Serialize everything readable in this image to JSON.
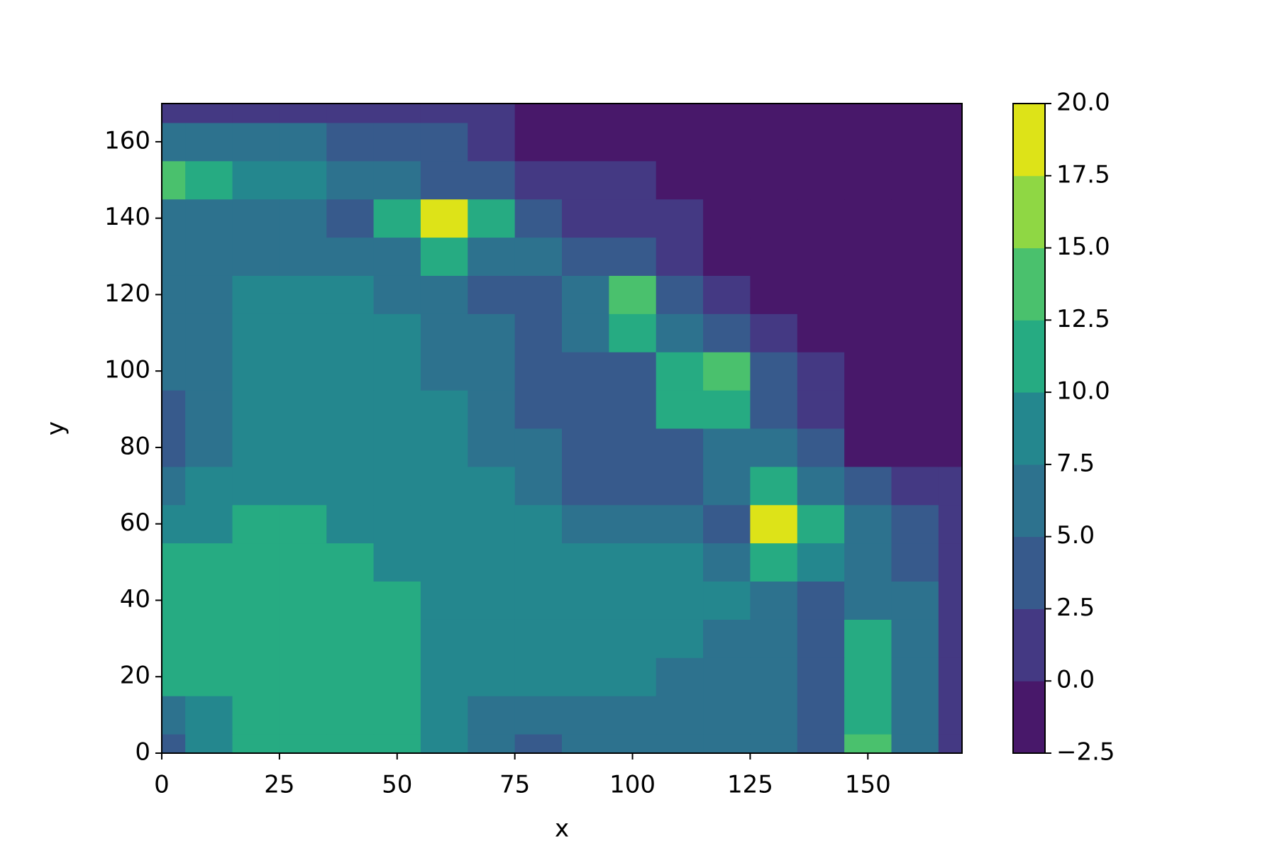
{
  "chart_data": {
    "type": "contourf",
    "xlabel": "x",
    "ylabel": "y",
    "xlim": [
      0,
      170
    ],
    "ylim": [
      0,
      170
    ],
    "xticks": [
      0,
      25,
      50,
      75,
      100,
      125,
      150
    ],
    "yticks": [
      0,
      20,
      40,
      60,
      80,
      100,
      120,
      140,
      160
    ],
    "grid": false,
    "x": [
      0,
      10,
      20,
      30,
      40,
      50,
      60,
      70,
      80,
      90,
      100,
      110,
      120,
      130,
      140,
      150,
      160,
      170
    ],
    "y": [
      0,
      10,
      20,
      30,
      40,
      50,
      60,
      70,
      80,
      90,
      100,
      110,
      120,
      130,
      140,
      150,
      160,
      170
    ],
    "z": [
      [
        4,
        9,
        11,
        11,
        11,
        11,
        9,
        6,
        4,
        6,
        6,
        6,
        6,
        6,
        4,
        14,
        6,
        1
      ],
      [
        6,
        9,
        11,
        11,
        11,
        11,
        9,
        6,
        6,
        6,
        6,
        6,
        6,
        6,
        4,
        11,
        6,
        1
      ],
      [
        11,
        11,
        11,
        11,
        11,
        11,
        9,
        9,
        9,
        9,
        9,
        6,
        6,
        6,
        4,
        11,
        6,
        1
      ],
      [
        11,
        11,
        11,
        11,
        11,
        11,
        9,
        9,
        9,
        9,
        9,
        9,
        6,
        6,
        4,
        11,
        6,
        1
      ],
      [
        11,
        11,
        11,
        11,
        11,
        11,
        9,
        9,
        9,
        9,
        9,
        9,
        9,
        6,
        4,
        6,
        6,
        1
      ],
      [
        11,
        11,
        11,
        11,
        11,
        9,
        9,
        9,
        9,
        9,
        9,
        9,
        6,
        11,
        9,
        6,
        4,
        1
      ],
      [
        9,
        9,
        11,
        11,
        9,
        9,
        9,
        9,
        9,
        6,
        6,
        6,
        4,
        19,
        11,
        6,
        4,
        1
      ],
      [
        6,
        9,
        9,
        9,
        9,
        9,
        9,
        9,
        6,
        4,
        4,
        4,
        6,
        11,
        6,
        4,
        1,
        1
      ],
      [
        4,
        6,
        9,
        9,
        9,
        9,
        9,
        6,
        6,
        4,
        4,
        4,
        6,
        6,
        4,
        -1,
        -1,
        -1
      ],
      [
        4,
        6,
        9,
        9,
        9,
        9,
        9,
        6,
        4,
        4,
        4,
        11,
        11,
        4,
        1,
        -1,
        -1,
        -1
      ],
      [
        6,
        6,
        9,
        9,
        9,
        9,
        6,
        6,
        4,
        4,
        4,
        11,
        14,
        4,
        1,
        -1,
        -1,
        -1
      ],
      [
        6,
        6,
        9,
        9,
        9,
        9,
        6,
        6,
        4,
        6,
        11,
        6,
        4,
        1,
        -1,
        -1,
        -1,
        -1
      ],
      [
        6,
        6,
        9,
        9,
        9,
        6,
        6,
        4,
        4,
        6,
        14,
        4,
        1,
        -1,
        -1,
        -1,
        -1,
        -1
      ],
      [
        6,
        6,
        6,
        6,
        6,
        6,
        11,
        6,
        6,
        4,
        4,
        1,
        -1,
        -1,
        -1,
        -1,
        -1,
        -1
      ],
      [
        6,
        6,
        6,
        6,
        4,
        11,
        19,
        11,
        4,
        1,
        1,
        1,
        -1,
        -1,
        -1,
        -1,
        -1,
        -1
      ],
      [
        14,
        11,
        9,
        9,
        6,
        6,
        4,
        4,
        1,
        1,
        1,
        -1,
        -1,
        -1,
        -1,
        -1,
        -1,
        -1
      ],
      [
        6,
        6,
        6,
        6,
        4,
        4,
        4,
        1,
        -1,
        -1,
        -1,
        -1,
        -1,
        -1,
        -1,
        -1,
        -1,
        -1
      ],
      [
        1,
        1,
        1,
        1,
        1,
        1,
        1,
        1,
        -1,
        -1,
        -1,
        -1,
        -1,
        -1,
        -1,
        -1,
        -1,
        -1
      ]
    ],
    "levels": [
      {
        "value": -2.5,
        "label": "−2.5"
      },
      {
        "value": 0,
        "label": "0.0"
      },
      2.5,
      {
        "value": 5,
        "label": "5.0"
      },
      7.5,
      {
        "value": 10,
        "label": "10.0"
      },
      12.5,
      {
        "value": 15,
        "label": "15.0"
      },
      17.5,
      {
        "value": 20,
        "label": "20.0"
      }
    ],
    "colors": [
      "#48186a",
      "#443983",
      "#375a8c",
      "#2d728e",
      "#24878e",
      "#26ab82",
      "#4ac16d",
      "#8fd744",
      "#dde318"
    ]
  }
}
